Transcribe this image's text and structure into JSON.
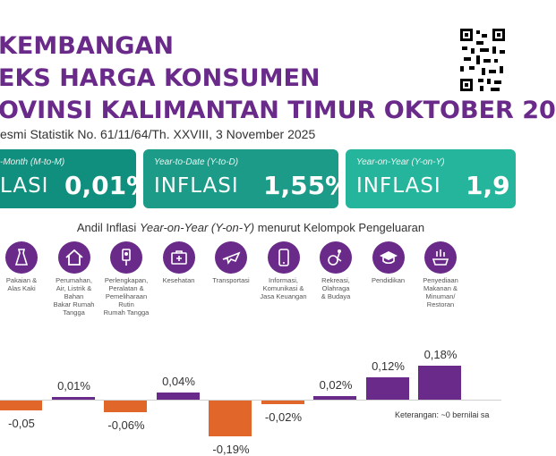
{
  "header": {
    "line1": "KEMBANGAN",
    "line2": "EKS HARGA KONSUMEN",
    "line3": "OVINSI KALIMANTAN TIMUR OKTOBER 20",
    "subtitle": "esmi Statistik No. 61/11/64/Th. XXVIII, 3 November 2025"
  },
  "cards": {
    "mtm": {
      "caption": "-Month (M-to-M)",
      "label": "LASI",
      "value": "0,01%"
    },
    "ytd": {
      "caption": "Year-to-Date (Y-to-D)",
      "label": "INFLASI",
      "value": "1,55%"
    },
    "yoy": {
      "caption": "Year-on-Year (Y-on-Y)",
      "label": "INFLASI",
      "value": "1,9"
    }
  },
  "section": {
    "heading_pre": "Andil Inflasi ",
    "heading_em": "Year-on-Year (Y-on-Y)",
    "heading_post": " menurut Kelompok Pengeluaran"
  },
  "categories": [
    {
      "name": "Pakaian &\nAlas Kaki",
      "icon": "dress-icon",
      "value": -0.05,
      "label": "-0,05"
    },
    {
      "name": "Perumahan,\nAir, Listrik &\nBahan\nBakar Rumah\nTangga",
      "icon": "house-icon",
      "value": 0.01,
      "label": "0,01%"
    },
    {
      "name": "Perlengkapan,\nPeralatan &\nPemeliharaan\nRutin\nRumah Tangga",
      "icon": "appliance-icon",
      "value": -0.06,
      "label": "-0,06%"
    },
    {
      "name": "Kesehatan",
      "icon": "medkit-icon",
      "value": 0.04,
      "label": "0,04%"
    },
    {
      "name": "Transportasi",
      "icon": "airplane-icon",
      "value": -0.19,
      "label": "-0,19%"
    },
    {
      "name": "Informasi,\nKomunikasi &\nJasa Keuangan",
      "icon": "phone-icon",
      "value": -0.02,
      "label": "-0,02%"
    },
    {
      "name": "Rekreasi,\nOlahraga\n& Budaya",
      "icon": "sport-icon",
      "value": 0.02,
      "label": "0,02%"
    },
    {
      "name": "Pendidikan",
      "icon": "graduation-cap-icon",
      "value": 0.12,
      "label": "0,12%"
    },
    {
      "name": "Penyediaan\nMakanan &\nMinuman/\nRestoran",
      "icon": "food-icon",
      "value": 0.18,
      "label": "0,18%"
    }
  ],
  "note": "Keterangan: ~0 bernilai sa",
  "colors": {
    "purple": "#6a2a8a",
    "orange": "#e0662a",
    "teal": "#1c9b88"
  }
}
